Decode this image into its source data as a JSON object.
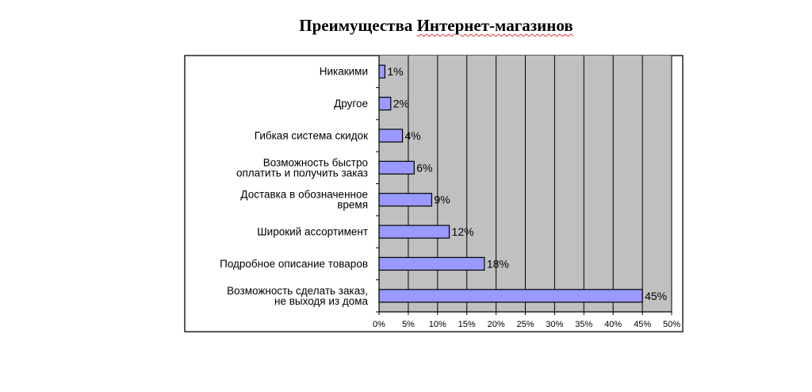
{
  "chart_data": {
    "type": "bar",
    "orientation": "horizontal",
    "title_part1": "Преимущества ",
    "title_part2": "Интернет-магазинов",
    "categories": [
      [
        "Никакими"
      ],
      [
        "Другое"
      ],
      [
        "Гибкая система скидок"
      ],
      [
        "Возможность быстро",
        "оплатить и получить заказ"
      ],
      [
        "Доставка в обозначенное",
        "время"
      ],
      [
        "Широкий ассортимент"
      ],
      [
        "Подробное описание товаров"
      ],
      [
        "Возможность сделать заказ,",
        "не выходя из дома"
      ]
    ],
    "values": [
      1,
      2,
      4,
      6,
      9,
      12,
      18,
      45
    ],
    "value_labels": [
      "1%",
      "2%",
      "4%",
      "6%",
      "9%",
      "12%",
      "18%",
      "45%"
    ],
    "xticks": [
      "0%",
      "5%",
      "10%",
      "15%",
      "20%",
      "25%",
      "30%",
      "35%",
      "40%",
      "45%",
      "50%"
    ],
    "xlim": [
      0,
      50
    ],
    "grid": true,
    "colors": {
      "bar_fill": "#9999ff",
      "bar_stroke": "#000000",
      "plot_bg": "#c0c0c0",
      "grid": "#000000"
    }
  }
}
